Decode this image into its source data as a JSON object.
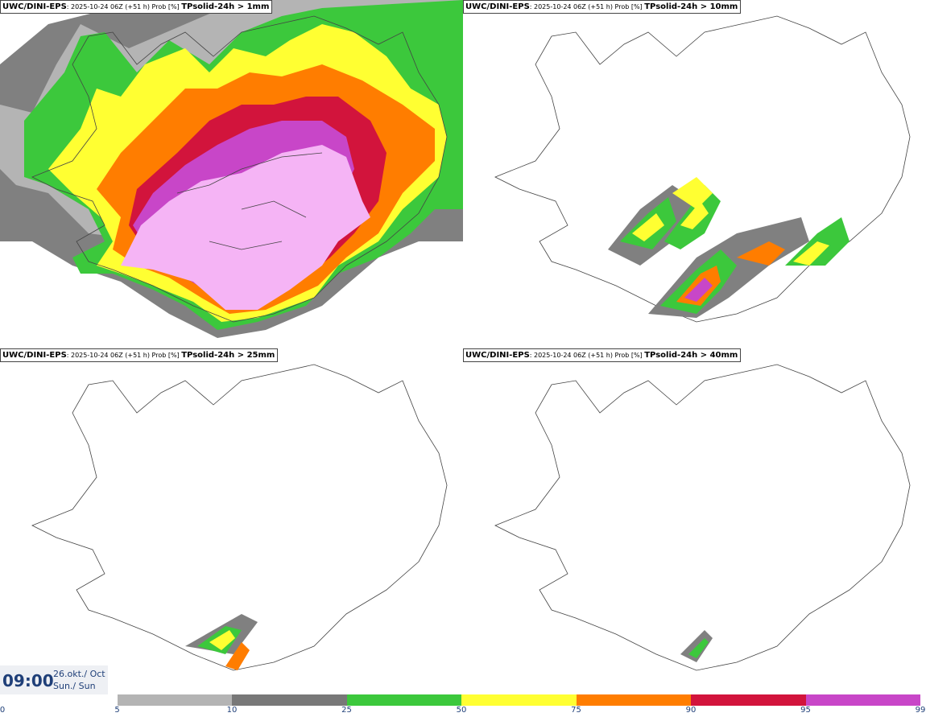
{
  "panels": [
    {
      "model": "UWC/DINI-EPS",
      "meta": ": 2025-10-24 06Z (+51 h) Prob [%] ",
      "param": "TPsolid-24h > 1mm"
    },
    {
      "model": "UWC/DINI-EPS",
      "meta": ": 2025-10-24 06Z (+51 h) Prob [%] ",
      "param": "TPsolid-24h > 10mm"
    },
    {
      "model": "UWC/DINI-EPS",
      "meta": ": 2025-10-24 06Z (+51 h) Prob [%] ",
      "param": "TPsolid-24h > 25mm"
    },
    {
      "model": "UWC/DINI-EPS",
      "meta": ": 2025-10-24 06Z (+51 h) Prob [%] ",
      "param": "TPsolid-24h > 40mm"
    }
  ],
  "time": {
    "clock": "09:00",
    "date_line1": "26.okt./ Oct",
    "date_line2": "Sun./ Sun"
  },
  "legend": {
    "ticks": [
      "0",
      "5",
      "10",
      "25",
      "50",
      "75",
      "90",
      "95",
      "99"
    ],
    "colors": [
      "#ffffff",
      "#b4b4b4",
      "#787878",
      "#3cc83c",
      "#ffff32",
      "#ff7d00",
      "#d2143c",
      "#c846c8",
      "#f5b4f5"
    ]
  },
  "palette": {
    "lightgray": "#b4b4b4",
    "gray": "#808080",
    "green": "#3cc83c",
    "yellow": "#ffff32",
    "orange": "#ff7d00",
    "red": "#d2143c",
    "magenta": "#c846c8",
    "pink": "#f5b4f5"
  }
}
